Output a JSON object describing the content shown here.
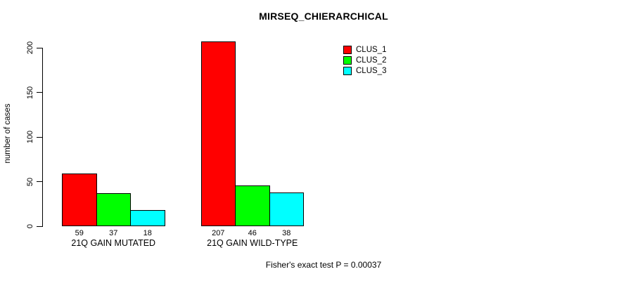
{
  "chart_data": {
    "type": "bar",
    "title": "MIRSEQ_CHIERARCHICAL",
    "xlabel": "",
    "ylabel": "number of cases",
    "categories": [
      "21Q GAIN MUTATED",
      "21Q GAIN WILD-TYPE"
    ],
    "series": [
      {
        "name": "CLUS_1",
        "color": "#ff0000",
        "values": [
          59,
          207
        ]
      },
      {
        "name": "CLUS_2",
        "color": "#00ff00",
        "values": [
          37,
          46
        ]
      },
      {
        "name": "CLUS_3",
        "color": "#00ffff",
        "values": [
          18,
          38
        ]
      }
    ],
    "y_ticks": [
      0,
      50,
      100,
      150,
      200
    ],
    "ylim": [
      0,
      200
    ],
    "grid": false,
    "legend": {
      "position": "top-right-of-plot",
      "entries": [
        "CLUS_1",
        "CLUS_2",
        "CLUS_3"
      ]
    },
    "annotation": "Fisher's exact test P = 0.00037",
    "bar_border_color": "#000000",
    "axis_color": "#000000"
  }
}
